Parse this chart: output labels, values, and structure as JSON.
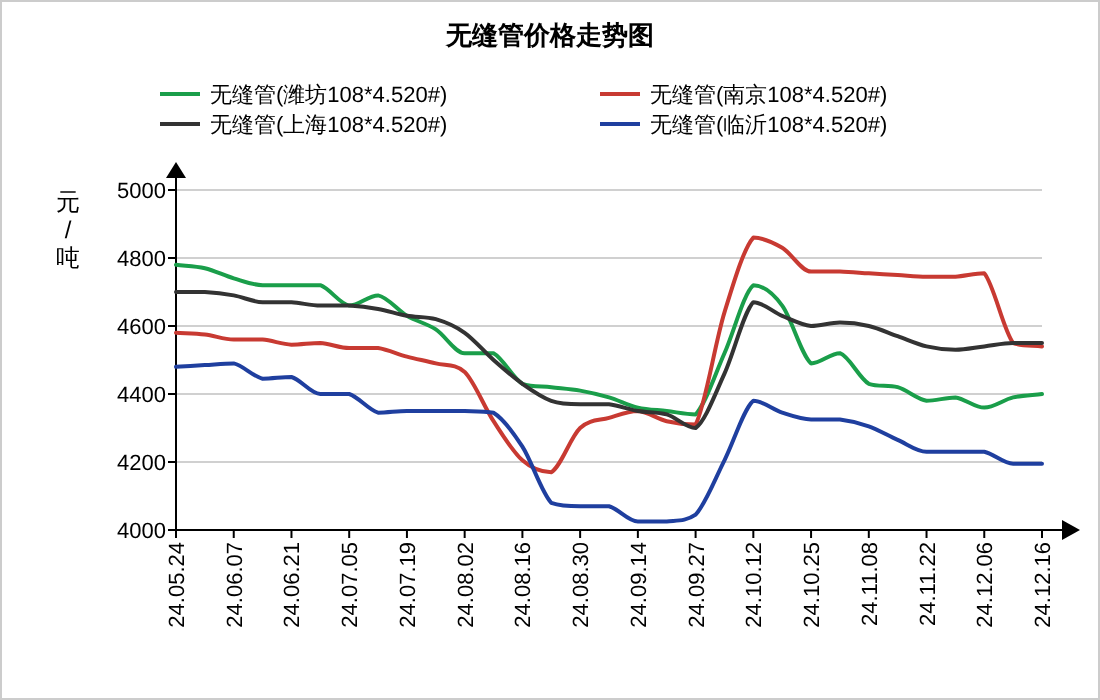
{
  "chart_data": {
    "type": "line",
    "title": "无缝管价格走势图",
    "ylabel": "元/吨",
    "categories": [
      "24.05.24",
      null,
      "24.06.07",
      null,
      "24.06.21",
      null,
      "24.07.05",
      null,
      "24.07.19",
      null,
      "24.08.02",
      null,
      "24.08.16",
      null,
      "24.08.30",
      null,
      "24.09.14",
      null,
      "24.09.27",
      null,
      "24.10.12",
      null,
      "24.10.25",
      null,
      "24.11.08",
      null,
      "24.11.22",
      null,
      "24.12.06",
      null,
      "24.12.16"
    ],
    "series": [
      {
        "name": "无缝管(潍坊108*4.520#)",
        "color": "#1a9e4a",
        "values": [
          4780,
          4770,
          4740,
          4720,
          4720,
          4720,
          4660,
          4690,
          4630,
          4590,
          4520,
          4520,
          4430,
          4420,
          4410,
          4390,
          4360,
          4350,
          4340,
          4520,
          4720,
          4660,
          4490,
          4520,
          4430,
          4420,
          4380,
          4390,
          4360,
          4390,
          4400
        ]
      },
      {
        "name": "无缝管(南京108*4.520#)",
        "color": "#c83a32",
        "values": [
          4580,
          4575,
          4560,
          4560,
          4545,
          4550,
          4535,
          4535,
          4510,
          4490,
          4465,
          4320,
          4205,
          4170,
          4300,
          4330,
          4350,
          4320,
          4310,
          4640,
          4860,
          4830,
          4760,
          4760,
          4755,
          4750,
          4745,
          4745,
          4755,
          4550,
          4540
        ]
      },
      {
        "name": "无缝管(上海108*4.520#)",
        "color": "#333333",
        "values": [
          4700,
          4700,
          4690,
          4670,
          4670,
          4660,
          4660,
          4650,
          4630,
          4620,
          4580,
          4500,
          4430,
          4380,
          4370,
          4370,
          4350,
          4340,
          4300,
          4460,
          4670,
          4630,
          4600,
          4610,
          4600,
          4570,
          4540,
          4530,
          4540,
          4550,
          4550
        ]
      },
      {
        "name": "无缝管(临沂108*4.520#)",
        "color": "#1f3f9f",
        "values": [
          4480,
          4485,
          4490,
          4445,
          4450,
          4400,
          4400,
          4345,
          4350,
          4350,
          4350,
          4345,
          4245,
          4080,
          4070,
          4070,
          4025,
          4025,
          4045,
          4205,
          4380,
          4345,
          4325,
          4325,
          4305,
          4265,
          4230,
          4230,
          4230,
          4195,
          4195
        ]
      }
    ],
    "ylim": [
      4000,
      5000
    ],
    "yticks": [
      4000,
      4200,
      4400,
      4600,
      4800,
      5000
    ],
    "grid": "y",
    "legend": "top",
    "marker": "none",
    "line_style": "solid"
  }
}
